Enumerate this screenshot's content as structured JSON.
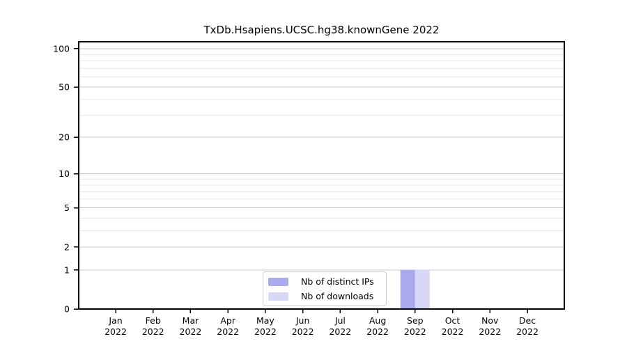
{
  "chart_data": {
    "type": "bar",
    "title": "TxDb.Hsapiens.UCSC.hg38.knownGene 2022",
    "categories": [
      "Jan\n2022",
      "Feb\n2022",
      "Mar\n2022",
      "Apr\n2022",
      "May\n2022",
      "Jun\n2022",
      "Jul\n2022",
      "Aug\n2022",
      "Sep\n2022",
      "Oct\n2022",
      "Nov\n2022",
      "Dec\n2022"
    ],
    "series": [
      {
        "name": "Nb of distinct IPs",
        "color": "#a9a9ee",
        "values": [
          0,
          0,
          0,
          0,
          0,
          0,
          0,
          0,
          1,
          0,
          0,
          0
        ]
      },
      {
        "name": "Nb of downloads",
        "color": "#d8d8f6",
        "values": [
          0,
          0,
          0,
          0,
          0,
          0,
          0,
          0,
          1,
          0,
          0,
          0
        ]
      }
    ],
    "xlabel": "",
    "ylabel": "",
    "y_axis": {
      "scale": "log1p",
      "tick_values": [
        0,
        1,
        2,
        5,
        10,
        20,
        50,
        100
      ],
      "minor_gridline_values": [
        3,
        4,
        6,
        7,
        8,
        9,
        30,
        40,
        60,
        70,
        80,
        90
      ],
      "max_value": 113
    },
    "grid": true,
    "legend_position": "bottom-center",
    "colors": {
      "major_grid": "#c8c8c8",
      "minor_grid": "#eaeaea",
      "spine": "#000000",
      "text": "#000000",
      "background": "#ffffff"
    }
  }
}
